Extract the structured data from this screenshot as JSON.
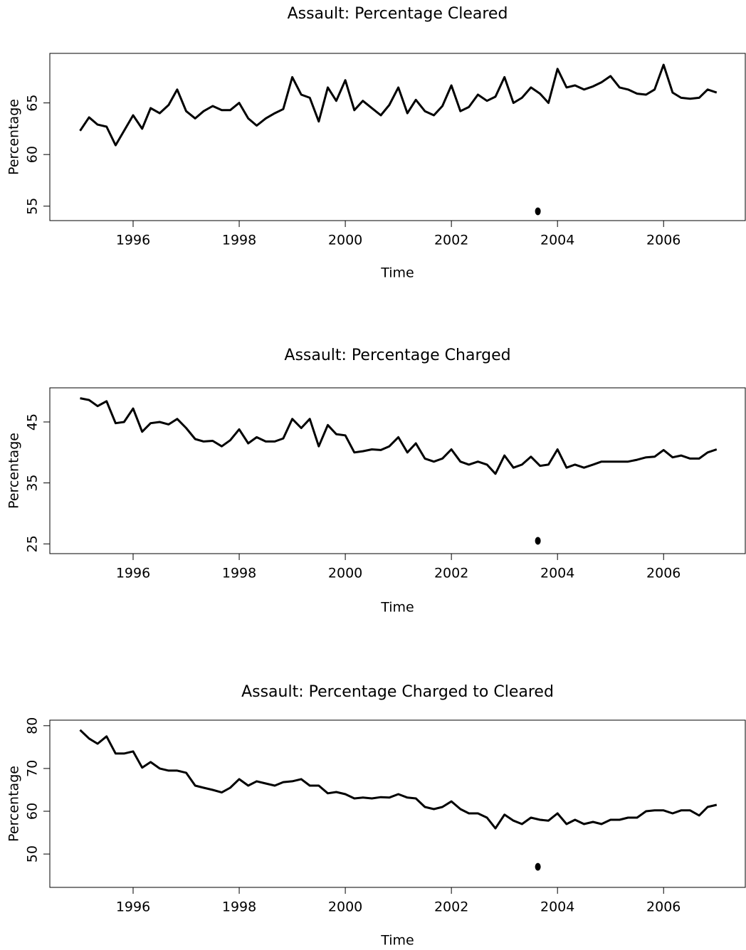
{
  "chart_data": [
    {
      "type": "line",
      "title": "Assault: Percentage Cleared",
      "xlabel": "Time",
      "ylabel": "Percentage",
      "color": "#000000",
      "x": [
        1995,
        1995.17,
        1995.33,
        1995.5,
        1995.67,
        1995.83,
        1996,
        1996.17,
        1996.33,
        1996.5,
        1996.67,
        1996.83,
        1997,
        1997.17,
        1997.33,
        1997.5,
        1997.67,
        1997.83,
        1998,
        1998.17,
        1998.33,
        1998.5,
        1998.67,
        1998.83,
        1999,
        1999.17,
        1999.33,
        1999.5,
        1999.67,
        1999.83,
        2000,
        2000.17,
        2000.33,
        2000.5,
        2000.67,
        2000.83,
        2001,
        2001.17,
        2001.33,
        2001.5,
        2001.67,
        2001.83,
        2002,
        2002.17,
        2002.33,
        2002.5,
        2002.67,
        2002.83,
        2003,
        2003.17,
        2003.33,
        2003.5,
        2003.67,
        2003.83,
        2004,
        2004.17,
        2004.33,
        2004.5,
        2004.67,
        2004.83,
        2005,
        2005.17,
        2005.33,
        2005.5,
        2005.67,
        2005.83,
        2006,
        2006.17,
        2006.33,
        2006.5,
        2006.67,
        2006.83,
        2007
      ],
      "values": [
        62.3,
        63.6,
        62.9,
        62.7,
        60.9,
        62.3,
        63.8,
        62.5,
        64.5,
        64.0,
        64.8,
        66.3,
        64.2,
        63.5,
        64.2,
        64.7,
        64.3,
        64.3,
        65.0,
        63.5,
        62.8,
        63.5,
        64.0,
        64.4,
        67.5,
        65.8,
        65.5,
        63.2,
        66.5,
        65.2,
        67.2,
        64.3,
        65.2,
        64.5,
        63.8,
        64.8,
        66.5,
        64.0,
        65.3,
        64.2,
        63.8,
        64.7,
        66.7,
        64.2,
        64.6,
        65.8,
        65.2,
        65.6,
        67.5,
        65.0,
        65.5,
        66.5,
        65.9,
        65.0,
        68.3,
        66.5,
        66.7,
        66.3,
        66.6,
        67.0,
        67.6,
        66.5,
        66.3,
        65.9,
        65.8,
        66.3,
        68.7,
        66.0,
        65.5,
        65.4,
        65.5,
        66.3,
        66.0
      ],
      "marker": {
        "x": 2003.63,
        "y": 54.5
      },
      "xlim": [
        1994.43,
        2007.54
      ],
      "ylim": [
        53.6,
        69.8
      ],
      "xticks": [
        1996,
        1998,
        2000,
        2002,
        2004,
        2006
      ],
      "yticks": [
        55,
        60,
        65
      ]
    },
    {
      "type": "line",
      "title": "Assault: Percentage Charged",
      "xlabel": "Time",
      "ylabel": "Percentage",
      "color": "#000000",
      "x": [
        1995,
        1995.17,
        1995.33,
        1995.5,
        1995.67,
        1995.83,
        1996,
        1996.17,
        1996.33,
        1996.5,
        1996.67,
        1996.83,
        1997,
        1997.17,
        1997.33,
        1997.5,
        1997.67,
        1997.83,
        1998,
        1998.17,
        1998.33,
        1998.5,
        1998.67,
        1998.83,
        1999,
        1999.17,
        1999.33,
        1999.5,
        1999.67,
        1999.83,
        2000,
        2000.17,
        2000.33,
        2000.5,
        2000.67,
        2000.83,
        2001,
        2001.17,
        2001.33,
        2001.5,
        2001.67,
        2001.83,
        2002,
        2002.17,
        2002.33,
        2002.5,
        2002.67,
        2002.83,
        2003,
        2003.17,
        2003.33,
        2003.5,
        2003.67,
        2003.83,
        2004,
        2004.17,
        2004.33,
        2004.5,
        2004.67,
        2004.83,
        2005,
        2005.17,
        2005.33,
        2005.5,
        2005.67,
        2005.83,
        2006,
        2006.17,
        2006.33,
        2006.5,
        2006.67,
        2006.83,
        2007
      ],
      "values": [
        48.9,
        48.6,
        47.6,
        48.4,
        44.8,
        45.0,
        47.2,
        43.4,
        44.8,
        45.0,
        44.6,
        45.5,
        44.0,
        42.2,
        41.8,
        41.9,
        41.0,
        42.0,
        43.8,
        41.5,
        42.5,
        41.8,
        41.8,
        42.3,
        45.5,
        44.0,
        45.5,
        41.0,
        44.5,
        43.0,
        42.8,
        40.0,
        40.2,
        40.5,
        40.4,
        41.0,
        42.5,
        40.0,
        41.5,
        39.0,
        38.5,
        39.0,
        40.5,
        38.5,
        38.0,
        38.5,
        38.0,
        36.5,
        39.5,
        37.5,
        38.0,
        39.3,
        37.8,
        38.0,
        40.5,
        37.5,
        38.0,
        37.5,
        38.0,
        38.5,
        38.5,
        38.5,
        38.5,
        38.8,
        39.2,
        39.3,
        40.4,
        39.2,
        39.5,
        39.0,
        39.0,
        40.0,
        40.5
      ],
      "marker": {
        "x": 2003.63,
        "y": 25.5
      },
      "xlim": [
        1994.43,
        2007.54
      ],
      "ylim": [
        23.4,
        50.6
      ],
      "xticks": [
        1996,
        1998,
        2000,
        2002,
        2004,
        2006
      ],
      "yticks": [
        25,
        35,
        45
      ]
    },
    {
      "type": "line",
      "title": "Assault: Percentage Charged to Cleared",
      "xlabel": "Time",
      "ylabel": "Percentage",
      "color": "#000000",
      "x": [
        1995,
        1995.17,
        1995.33,
        1995.5,
        1995.67,
        1995.83,
        1996,
        1996.17,
        1996.33,
        1996.5,
        1996.67,
        1996.83,
        1997,
        1997.17,
        1997.33,
        1997.5,
        1997.67,
        1997.83,
        1998,
        1998.17,
        1998.33,
        1998.5,
        1998.67,
        1998.83,
        1999,
        1999.17,
        1999.33,
        1999.5,
        1999.67,
        1999.83,
        2000,
        2000.17,
        2000.33,
        2000.5,
        2000.67,
        2000.83,
        2001,
        2001.17,
        2001.33,
        2001.5,
        2001.67,
        2001.83,
        2002,
        2002.17,
        2002.33,
        2002.5,
        2002.67,
        2002.83,
        2003,
        2003.17,
        2003.33,
        2003.5,
        2003.67,
        2003.83,
        2004,
        2004.17,
        2004.33,
        2004.5,
        2004.67,
        2004.83,
        2005,
        2005.17,
        2005.33,
        2005.5,
        2005.67,
        2005.83,
        2006,
        2006.17,
        2006.33,
        2006.5,
        2006.67,
        2006.83,
        2007
      ],
      "values": [
        79.0,
        77.0,
        75.8,
        77.5,
        73.5,
        73.5,
        74.0,
        70.2,
        71.5,
        70.0,
        69.5,
        69.5,
        69.0,
        66.0,
        65.5,
        65.0,
        64.4,
        65.5,
        67.5,
        66.0,
        67.0,
        66.5,
        66.0,
        66.8,
        67.0,
        67.5,
        66.0,
        66.0,
        64.2,
        64.5,
        64.0,
        63.0,
        63.2,
        63.0,
        63.3,
        63.2,
        64.0,
        63.2,
        63.0,
        61.0,
        60.5,
        61.0,
        62.3,
        60.5,
        59.5,
        59.5,
        58.5,
        56.0,
        59.2,
        57.8,
        57.0,
        58.5,
        58.0,
        57.8,
        59.5,
        57.0,
        58.0,
        57.0,
        57.5,
        57.0,
        58.0,
        58.0,
        58.5,
        58.5,
        60.0,
        60.2,
        60.2,
        59.5,
        60.2,
        60.2,
        59.0,
        61.0,
        61.5
      ],
      "marker": {
        "x": 2003.63,
        "y": 47
      },
      "xlim": [
        1994.43,
        2007.54
      ],
      "ylim": [
        42.2,
        81.3
      ],
      "xticks": [
        1996,
        1998,
        2000,
        2002,
        2004,
        2006
      ],
      "yticks": [
        50,
        60,
        70,
        80
      ]
    }
  ]
}
